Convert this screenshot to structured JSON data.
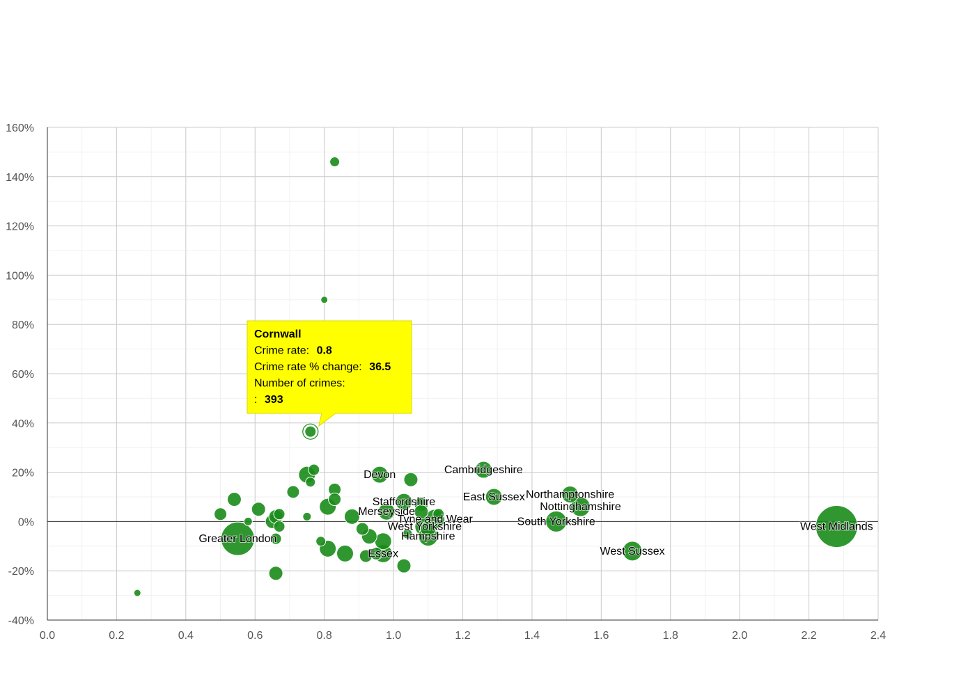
{
  "chart_data": {
    "type": "scatter",
    "title": "",
    "xlabel": "",
    "ylabel": "",
    "xlim": [
      0,
      2.4
    ],
    "ylim": [
      -40,
      160
    ],
    "x_ticks": [
      "0.0",
      "0.2",
      "0.4",
      "0.6",
      "0.8",
      "1.0",
      "1.2",
      "1.4",
      "1.6",
      "1.8",
      "2.0",
      "2.2",
      "2.4"
    ],
    "y_ticks": [
      "-40%",
      "-20%",
      "0%",
      "20%",
      "40%",
      "60%",
      "80%",
      "100%",
      "120%",
      "140%",
      "160%"
    ],
    "grid": true,
    "bubble_color": "#1a8c1a",
    "tooltip_color": "#ffff00",
    "series": [
      {
        "points": [
          {
            "x": 2.28,
            "y": -2,
            "size": 30,
            "label": "West Midlands"
          },
          {
            "x": 0.55,
            "y": -7,
            "size": 24,
            "label": "Greater London"
          },
          {
            "x": 1.69,
            "y": -12,
            "size": 14,
            "label": "West Sussex"
          },
          {
            "x": 1.47,
            "y": 0,
            "size": 15,
            "label": "South Yorkshire"
          },
          {
            "x": 1.54,
            "y": 6,
            "size": 14,
            "label": "Nottinghamshire"
          },
          {
            "x": 1.51,
            "y": 11,
            "size": 12,
            "label": "Northamptonshire"
          },
          {
            "x": 1.29,
            "y": 10,
            "size": 12,
            "label": "East Sussex"
          },
          {
            "x": 1.26,
            "y": 21,
            "size": 12,
            "label": "Cambridgeshire"
          },
          {
            "x": 0.96,
            "y": 19,
            "size": 12,
            "label": "Devon"
          },
          {
            "x": 1.03,
            "y": 8,
            "size": 12,
            "label": "Staffordshire"
          },
          {
            "x": 0.98,
            "y": 4,
            "size": 12,
            "label": "Merseyside"
          },
          {
            "x": 1.12,
            "y": 1,
            "size": 14,
            "label": "Tyne and Wear"
          },
          {
            "x": 1.09,
            "y": -2,
            "size": 14,
            "label": "West Yorkshire"
          },
          {
            "x": 1.1,
            "y": -6,
            "size": 14,
            "label": "Hampshire"
          },
          {
            "x": 0.97,
            "y": -13,
            "size": 13,
            "label": "Essex"
          },
          {
            "x": 0.76,
            "y": 36.5,
            "size": 8,
            "label": ""
          },
          {
            "x": 0.83,
            "y": 146,
            "size": 7,
            "label": ""
          },
          {
            "x": 0.8,
            "y": 90,
            "size": 5,
            "label": ""
          },
          {
            "x": 0.26,
            "y": -29,
            "size": 5,
            "label": ""
          },
          {
            "x": 0.75,
            "y": 19,
            "size": 12,
            "label": ""
          },
          {
            "x": 0.77,
            "y": 21,
            "size": 8,
            "label": ""
          },
          {
            "x": 0.76,
            "y": 16,
            "size": 7,
            "label": ""
          },
          {
            "x": 0.71,
            "y": 12,
            "size": 9,
            "label": ""
          },
          {
            "x": 0.83,
            "y": 13,
            "size": 9,
            "label": ""
          },
          {
            "x": 0.83,
            "y": 9,
            "size": 9,
            "label": ""
          },
          {
            "x": 0.81,
            "y": 6,
            "size": 12,
            "label": ""
          },
          {
            "x": 0.54,
            "y": 9,
            "size": 10,
            "label": ""
          },
          {
            "x": 0.61,
            "y": 5,
            "size": 10,
            "label": ""
          },
          {
            "x": 0.5,
            "y": 3,
            "size": 9,
            "label": ""
          },
          {
            "x": 0.58,
            "y": 0,
            "size": 6,
            "label": ""
          },
          {
            "x": 0.65,
            "y": 0,
            "size": 10,
            "label": ""
          },
          {
            "x": 0.66,
            "y": 2,
            "size": 10,
            "label": ""
          },
          {
            "x": 0.67,
            "y": 3,
            "size": 8,
            "label": ""
          },
          {
            "x": 0.67,
            "y": -2,
            "size": 8,
            "label": ""
          },
          {
            "x": 0.66,
            "y": -7,
            "size": 8,
            "label": ""
          },
          {
            "x": 0.75,
            "y": 2,
            "size": 6,
            "label": ""
          },
          {
            "x": 0.66,
            "y": -21,
            "size": 10,
            "label": ""
          },
          {
            "x": 0.79,
            "y": -8,
            "size": 7,
            "label": ""
          },
          {
            "x": 0.81,
            "y": -11,
            "size": 12,
            "label": ""
          },
          {
            "x": 0.86,
            "y": -13,
            "size": 12,
            "label": ""
          },
          {
            "x": 0.88,
            "y": 2,
            "size": 11,
            "label": ""
          },
          {
            "x": 0.91,
            "y": -3,
            "size": 9,
            "label": ""
          },
          {
            "x": 0.93,
            "y": -6,
            "size": 11,
            "label": ""
          },
          {
            "x": 0.92,
            "y": -14,
            "size": 9,
            "label": ""
          },
          {
            "x": 0.95,
            "y": -13,
            "size": 9,
            "label": ""
          },
          {
            "x": 0.97,
            "y": -8,
            "size": 12,
            "label": ""
          },
          {
            "x": 1.03,
            "y": -18,
            "size": 10,
            "label": ""
          },
          {
            "x": 1.04,
            "y": -5,
            "size": 7,
            "label": ""
          },
          {
            "x": 1.05,
            "y": 17,
            "size": 10,
            "label": ""
          },
          {
            "x": 1.08,
            "y": 7,
            "size": 10,
            "label": ""
          },
          {
            "x": 1.08,
            "y": 4,
            "size": 10,
            "label": ""
          },
          {
            "x": 1.13,
            "y": 3,
            "size": 8,
            "label": ""
          },
          {
            "x": 1.1,
            "y": -3,
            "size": 11,
            "label": ""
          }
        ]
      }
    ],
    "tooltip": {
      "name": "Cornwall",
      "rate_label": "Crime rate:",
      "rate_value": "0.8",
      "change_label": "Crime rate % change:",
      "change_value": "36.5",
      "count_label": "Number of crimes:",
      "count_prefix": ":",
      "count_value": "393",
      "point_x": 0.76,
      "point_y": 36.5
    }
  }
}
